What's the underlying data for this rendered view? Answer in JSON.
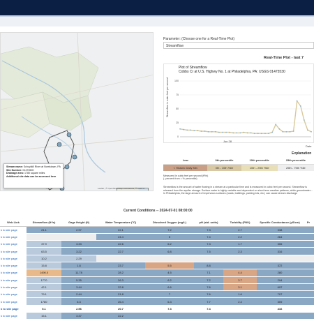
{
  "map": {
    "popup": {
      "name_label": "Stream name:",
      "name_value": "Schuylkill River at Norristown, PA",
      "site_label": "Site Number:",
      "site_value": "01473500",
      "drainage_label": "Drainage area:",
      "drainage_value": "1780 square miles",
      "extra": "Additional site data can be accessed here"
    },
    "attribution": "Leaflet | © OpenStreetMap contributors, © CARTO"
  },
  "parameter": {
    "label": "Parameter: (Choose one for a Real-Time Plot)",
    "selected": "Streamflow"
  },
  "plot": {
    "header": "Real-Time Plot - last 7",
    "title_line1": "Plot of Streamflow",
    "title_line2": "Cobbs Cr at U.S. Highwy No. 1 at Philadelphia, PA: USGS 01475530",
    "ylabel": "Streamflow in cubic feet per second",
    "yticks": [
      "100",
      "75",
      "50",
      "25",
      "0"
    ],
    "xticks": [
      "Jun 28",
      "Date"
    ]
  },
  "chart_data": {
    "type": "line",
    "title": "Plot of Streamflow",
    "ylabel": "Streamflow in cubic feet per second",
    "ylim": [
      0,
      100
    ],
    "series": [
      {
        "values": [
          14,
          13,
          12,
          12,
          11,
          11,
          10,
          10,
          9,
          9,
          9,
          8,
          8,
          8,
          8,
          7,
          7,
          7,
          8,
          7,
          7,
          6,
          6,
          6,
          6,
          6,
          8,
          22,
          14,
          9,
          9,
          9,
          10,
          64,
          55,
          30,
          12,
          9
        ]
      }
    ],
    "legend": "none",
    "grid": true
  },
  "explanation": {
    "title": "Explanation",
    "headers": [
      "Low",
      "0th percentile",
      "10th percentile",
      "25th percentile"
    ],
    "cells": [
      "< Historic Daily Min",
      "0th - 10th %ile",
      "10th - 25th %ile",
      "25th - 75th %ile"
    ],
    "colors": [
      "#c9a085",
      "#d8c8a4",
      "#e8dfb8",
      "#eeeeee"
    ]
  },
  "measured": {
    "line1": "Measured in cubic feet per second (ft³/s)",
    "line2": "(- percent from = % percentile)"
  },
  "description": "Streamflow is the amount of water flowing in a stream at a particular time and is measured in cubic feet per second. Streamflow is released from the aquifer storage. Surface water is highly variable and dependent on short-term weather patterns, while groundwater... In Philadelphia, the large amount of impervious surfaces (roads, buildings, parking lots, etc.) can cause stream discharge",
  "conditions": {
    "title": "Current Conditions -- 2024-07-01 08:00:00",
    "headers": [
      "Web Link",
      "Streamflow (ft³/s)",
      "Gage Height (ft)",
      "Water Temperature (°C)",
      "Dissolved Oxygen (mg/L)",
      "pH (std. units)",
      "Turbidity (FNU)",
      "Specific Conductance (µS/cm)",
      "Pr"
    ],
    "rows": [
      [
        "k to site page",
        "21.1",
        "2.97",
        "22.1",
        "7.2",
        "7.3",
        "2.7",
        "338",
        ""
      ],
      [
        "k to site page",
        "",
        "",
        "24.4",
        "5",
        "7.4",
        "2.2",
        "264",
        ""
      ],
      [
        "k to site page",
        "37.9",
        "3.33",
        "22.6",
        "6.2",
        "7.3",
        "1.7",
        "306",
        ""
      ],
      [
        "k to site page",
        "63.5",
        "3.22",
        "22.7",
        "6.8",
        "7.5",
        "2.3",
        "316",
        ""
      ],
      [
        "k to site page",
        "10.2",
        "2.29",
        "",
        "",
        "",
        "",
        "",
        ""
      ],
      [
        "k to site page",
        "15.8",
        "1.8",
        "23.7",
        "5.5",
        "8.8",
        "",
        "372",
        ""
      ],
      [
        "k to site page",
        "1490.0",
        "11.78",
        "28.2",
        "4.5",
        "7.1",
        "4.4",
        "280",
        ""
      ],
      [
        "k to site page",
        "1770",
        "5.35",
        "26.3",
        "6.2",
        "7.2",
        "3.7",
        "294",
        ""
      ],
      [
        "k to site page",
        "42.1",
        "3.44",
        "22.8",
        "6.6",
        "7.6",
        "3.1",
        "697",
        ""
      ],
      [
        "k to site page",
        "79.1",
        "2.44",
        "21.8",
        "7",
        "7.6",
        "1.6",
        "707",
        ""
      ],
      [
        "k to site page",
        "1780",
        "6.3",
        "26.4",
        "6.3",
        "7.7",
        "2.4",
        "309",
        ""
      ]
    ],
    "row_colors": [
      [
        "#fff",
        "#8aa7c4",
        "#8aa7c4",
        "#8aa7c4",
        "#8aa7c4",
        "#8aa7c4",
        "#8aa7c4",
        "#8aa7c4",
        "#8aa7c4"
      ],
      [
        "#fff",
        "#eeeeee",
        "#eeeeee",
        "#8aa7c4",
        "#8aa7c4",
        "#8aa7c4",
        "#8aa7c4",
        "#8aa7c4",
        "#8aa7c4"
      ],
      [
        "#fff",
        "#b9cadd",
        "#8aa7c4",
        "#8aa7c4",
        "#8aa7c4",
        "#8aa7c4",
        "#8aa7c4",
        "#8aa7c4",
        "#8aa7c4"
      ],
      [
        "#fff",
        "#b9cadd",
        "#8aa7c4",
        "#8aa7c4",
        "#8aa7c4",
        "#8aa7c4",
        "#8aa7c4",
        "#8aa7c4",
        "#8aa7c4"
      ],
      [
        "#fff",
        "#b9cadd",
        "#b9cadd",
        "#eeeeee",
        "#eeeeee",
        "#eeeeee",
        "#eeeeee",
        "#eeeeee",
        "#eeeeee"
      ],
      [
        "#fff",
        "#b9cadd",
        "#8aa7c4",
        "#8aa7c4",
        "#d8a585",
        "#8aa7c4",
        "#8aa7c4",
        "#8aa7c4",
        "#8aa7c4"
      ],
      [
        "#fff",
        "#e8b98a",
        "#8aa7c4",
        "#8aa7c4",
        "#8aa7c4",
        "#8aa7c4",
        "#d8a585",
        "#8aa7c4",
        "#8aa7c4"
      ],
      [
        "#fff",
        "#b9cadd",
        "#8aa7c4",
        "#8aa7c4",
        "#8aa7c4",
        "#8aa7c4",
        "#d8a585",
        "#8aa7c4",
        "#8aa7c4"
      ],
      [
        "#fff",
        "#b9cadd",
        "#8aa7c4",
        "#8aa7c4",
        "#8aa7c4",
        "#8aa7c4",
        "#d8a585",
        "#8aa7c4",
        "#8aa7c4"
      ],
      [
        "#fff",
        "#b9cadd",
        "#8aa7c4",
        "#8aa7c4",
        "#8aa7c4",
        "#8aa7c4",
        "#8aa7c4",
        "#8aa7c4",
        "#8aa7c4"
      ],
      [
        "#fff",
        "#b9cadd",
        "#8aa7c4",
        "#8aa7c4",
        "#8aa7c4",
        "#8aa7c4",
        "#8aa7c4",
        "#8aa7c4",
        "#8aa7c4"
      ]
    ],
    "total_row": [
      "k to site page",
      "5.1",
      "2.56",
      "20.7",
      "7.3",
      "7.4",
      "",
      "416",
      ""
    ],
    "partial_row": [
      "k to site page",
      "15.1",
      "3.47",
      "22.2",
      "",
      "",
      "",
      "",
      ""
    ]
  }
}
